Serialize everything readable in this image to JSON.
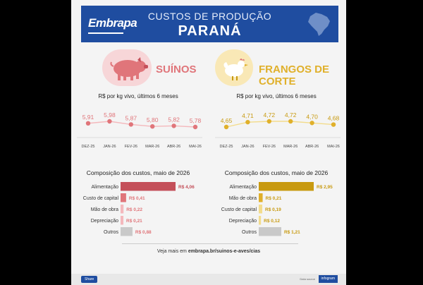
{
  "header": {
    "logo": "Embrapa",
    "title_line1": "CUSTOS DE PRODUÇÃO",
    "title_line2": "PARANÁ"
  },
  "colors": {
    "header_bg": "#1f4da0",
    "suinos": "#e0757a",
    "suinos_dark": "#c4505a",
    "suinos_light": "#f4b8bc",
    "frangos": "#e0b02a",
    "frangos_dark": "#c89a10",
    "frangos_light": "#f3dc8c",
    "gray_bar": "#c9c9c9"
  },
  "suinos": {
    "name": "SUÍNOS",
    "subtitle": "R$ por kg vivo, últimos 6 meses",
    "composition_title": "Composição dos custos, maio de 2026"
  },
  "frangos": {
    "name": "FRANGOS DE CORTE",
    "subtitle": "R$ por kg vivo, últimos 6 meses",
    "composition_title": "Composição dos custos, maio de 2026"
  },
  "footer": {
    "prefix": "Veja mais em ",
    "link": "embrapa.br/suinos-e-aves/cias"
  },
  "bottom": {
    "share": "Share",
    "credit": "Data source",
    "infogram": "infogram"
  },
  "chart_data": [
    {
      "type": "line",
      "title": "R$ por kg vivo, últimos 6 meses",
      "categories": [
        "DEZ-25",
        "JAN-26",
        "FEV-26",
        "MAR-26",
        "ABR-26",
        "MAI-26"
      ],
      "series": [
        {
          "values": [
            5.91,
            5.98,
            5.87,
            5.8,
            5.82,
            5.78
          ]
        }
      ],
      "labels": [
        "5,91",
        "5,98",
        "5,87",
        "5,80",
        "5,82",
        "5,78"
      ]
    },
    {
      "type": "line",
      "title": "R$ por kg vivo, últimos 6 meses",
      "categories": [
        "DEZ-25",
        "JAN-26",
        "FEV-26",
        "MAR-26",
        "ABR-26",
        "MAI-26"
      ],
      "series": [
        {
          "values": [
            4.65,
            4.71,
            4.72,
            4.72,
            4.7,
            4.68
          ]
        }
      ],
      "labels": [
        "4,65",
        "4,71",
        "4,72",
        "4,72",
        "4,70",
        "4,68"
      ]
    },
    {
      "type": "bar",
      "title": "Composição dos custos, maio de 2026",
      "categories": [
        "Alimentação",
        "Custo de capital",
        "Mão de obra",
        "Depreciação",
        "Outros"
      ],
      "values": [
        4.06,
        0.41,
        0.22,
        0.21,
        0.88
      ],
      "labels": [
        "R$ 4,06",
        "R$ 0,41",
        "R$ 0,22",
        "R$ 0,21",
        "R$ 0,88"
      ]
    },
    {
      "type": "bar",
      "title": "Composição dos custos, maio de 2026",
      "categories": [
        "Alimentação",
        "Mão de obra",
        "Custo de capital",
        "Depreciação",
        "Outros"
      ],
      "values": [
        2.95,
        0.21,
        0.19,
        0.12,
        1.21
      ],
      "labels": [
        "R$ 2,95",
        "R$ 0,21",
        "R$ 0,19",
        "R$ 0,12",
        "R$ 1,21"
      ]
    }
  ]
}
